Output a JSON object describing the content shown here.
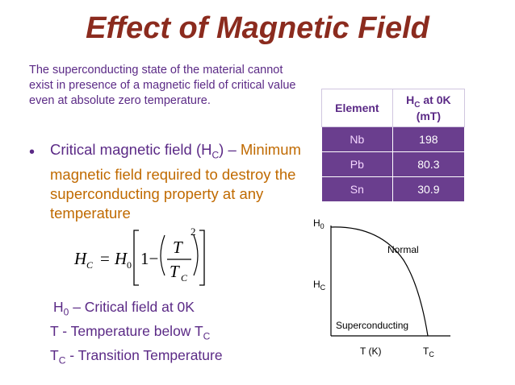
{
  "title": "Effect of Magnetic Field",
  "intro": "The superconducting state of the material cannot exist in presence of a magnetic field of critical value even at absolute zero temperature.",
  "bullet": {
    "lead": "Critical magnetic field (H",
    "lead_sub": "C",
    "lead_tail": ") –",
    "definition": "Minimum magnetic field required to destroy the superconducting property at any temperature"
  },
  "formula": {
    "lhs": "H",
    "lhs_sub": "C",
    "eq": "=",
    "h0": "H",
    "h0_sub": "0",
    "one_minus": "1−",
    "num": "T",
    "den": "T",
    "den_sub": "C",
    "power": "2"
  },
  "definitions": [
    {
      "sym": "H",
      "sub": "0",
      "text": " – Critical field at 0K"
    },
    {
      "sym": "T - Temperature below T",
      "sub": "C",
      "text": ""
    },
    {
      "sym": "T",
      "sub": "C",
      "text": "  - Transition Temperature"
    }
  ],
  "table": {
    "col1": "Element",
    "col2_main": "H",
    "col2_sub": "C",
    "col2_tail": " at 0K",
    "col2_unit": "(mT)",
    "rows": [
      {
        "element": "Nb",
        "value": "198"
      },
      {
        "element": "Pb",
        "value": "80.3"
      },
      {
        "element": "Sn",
        "value": "30.9"
      }
    ]
  },
  "graph": {
    "y_top": "H",
    "y_top_sub": "0",
    "y_mid": "H",
    "y_mid_sub": "C",
    "region_normal": "Normal",
    "region_super": "Superconducting",
    "x_label": "T (K)",
    "x_end": "T",
    "x_end_sub": "C"
  }
}
